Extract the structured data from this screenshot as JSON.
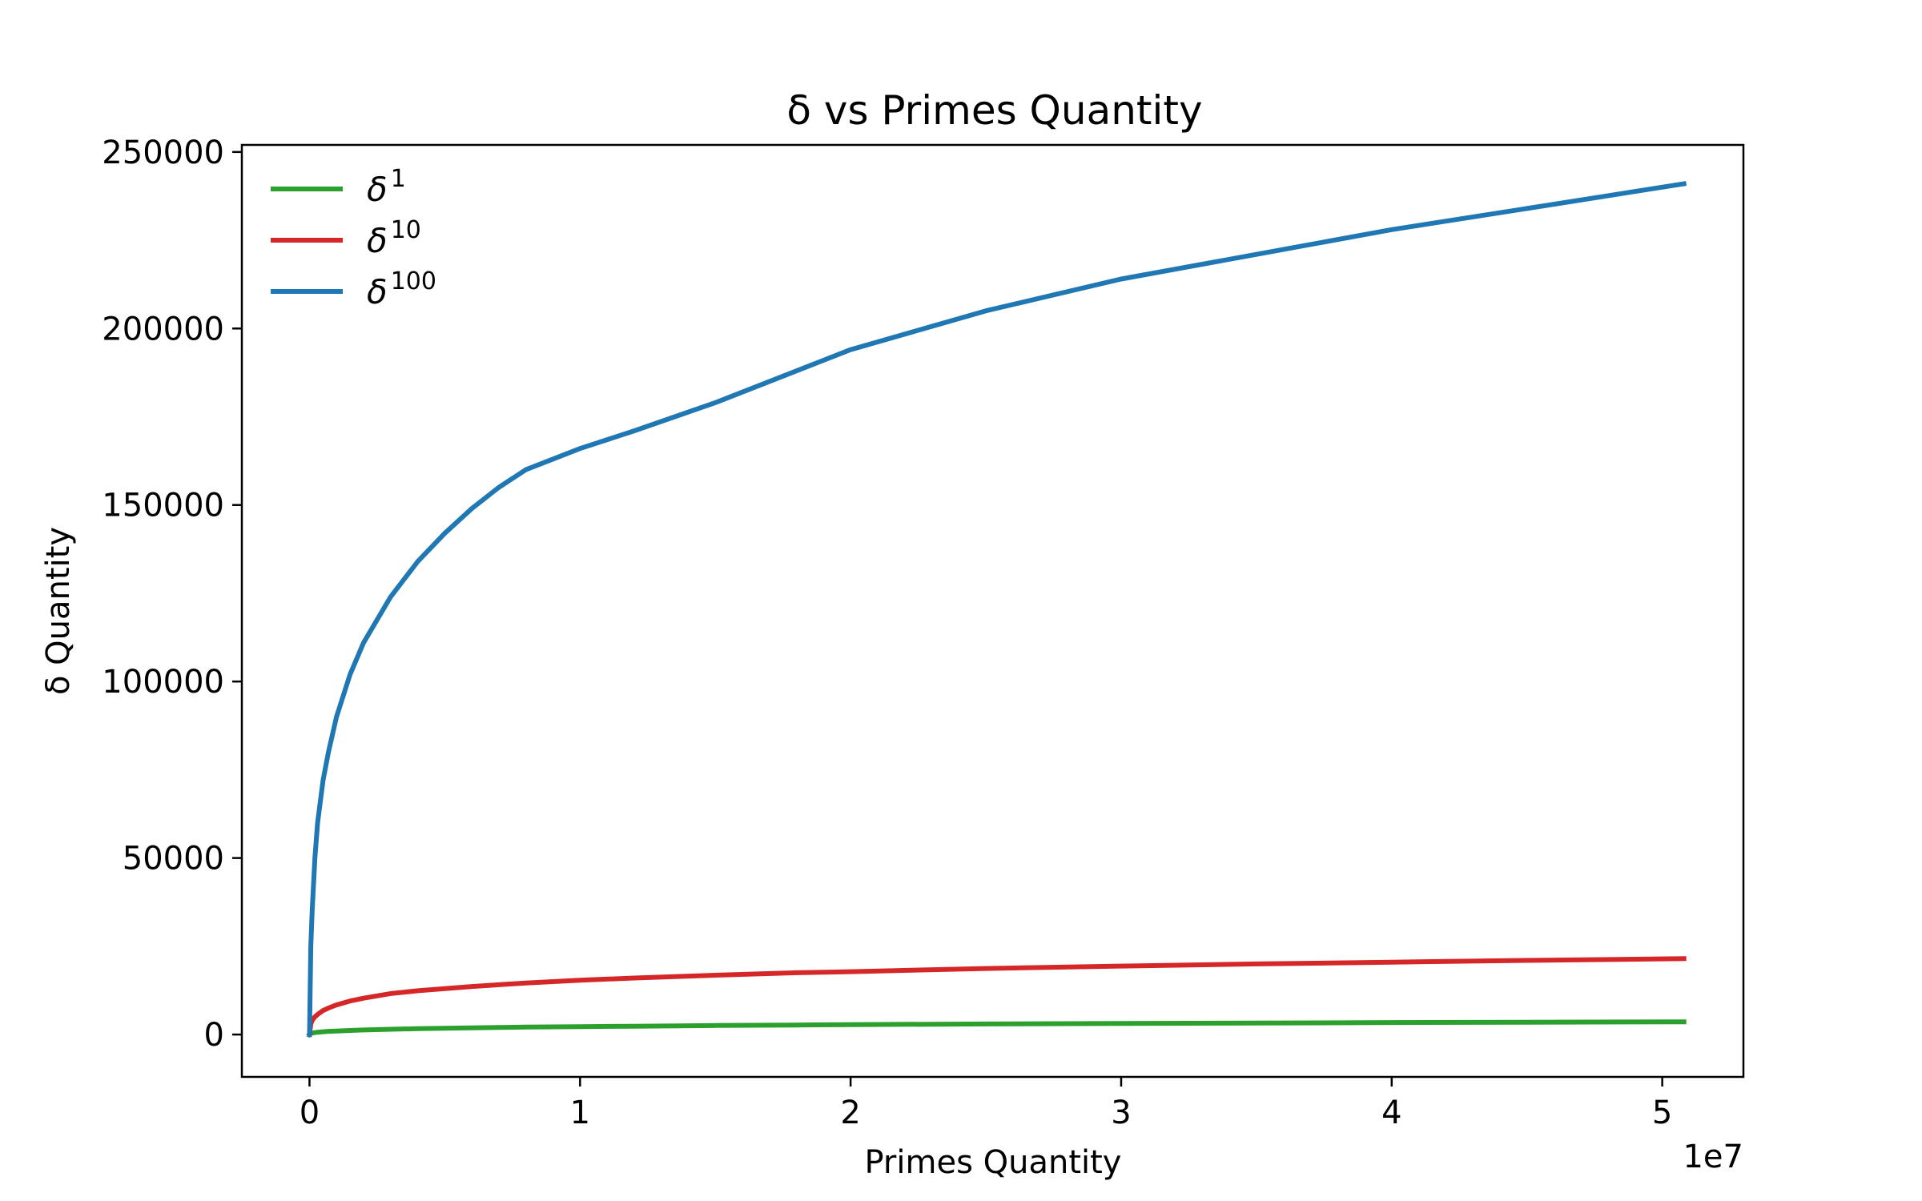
{
  "chart_data": {
    "type": "line",
    "title": "δ vs Primes Quantity",
    "xlabel": "Primes Quantity",
    "ylabel": "δ Quantity",
    "x_offset_label": "1e7",
    "xlim": [
      -2500000,
      53000000
    ],
    "ylim": [
      -12000,
      252000
    ],
    "xticks": [
      0,
      10000000,
      20000000,
      30000000,
      40000000,
      50000000
    ],
    "xtick_labels": [
      "0",
      "1",
      "2",
      "3",
      "4",
      "5"
    ],
    "yticks": [
      0,
      50000,
      100000,
      150000,
      200000,
      250000
    ],
    "ytick_labels": [
      "0",
      "50000",
      "100000",
      "150000",
      "200000",
      "250000"
    ],
    "grid": false,
    "legend_position": "upper-left",
    "x": [
      0,
      50000,
      100000,
      200000,
      300000,
      500000,
      700000,
      1000000,
      1500000,
      2000000,
      3000000,
      4000000,
      5000000,
      6000000,
      7000000,
      8000000,
      10000000,
      12000000,
      15000000,
      18000000,
      20000000,
      25000000,
      30000000,
      35000000,
      40000000,
      45000000,
      50800000
    ],
    "series": [
      {
        "name": "δ",
        "sup": "1",
        "color": "#2ca02c",
        "values": [
          0,
          300,
          400,
          550,
          650,
          800,
          900,
          1000,
          1150,
          1300,
          1500,
          1650,
          1800,
          1900,
          2000,
          2100,
          2250,
          2350,
          2550,
          2700,
          2800,
          3000,
          3150,
          3250,
          3400,
          3500,
          3600
        ]
      },
      {
        "name": "δ",
        "sup": "10",
        "color": "#d62728",
        "values": [
          0,
          3000,
          4000,
          5000,
          5700,
          6800,
          7500,
          8400,
          9500,
          10300,
          11600,
          12400,
          13000,
          13600,
          14100,
          14600,
          15400,
          16000,
          16800,
          17500,
          17800,
          18700,
          19400,
          20000,
          20500,
          21000,
          21500
        ]
      },
      {
        "name": "δ",
        "sup": "100",
        "color": "#1f77b4",
        "values": [
          0,
          25000,
          35000,
          50000,
          60000,
          72000,
          80000,
          90000,
          102000,
          111000,
          124000,
          134000,
          142000,
          149000,
          155000,
          160000,
          166000,
          171000,
          179000,
          188000,
          194000,
          205000,
          214000,
          221000,
          228000,
          234000,
          241000
        ]
      }
    ]
  }
}
